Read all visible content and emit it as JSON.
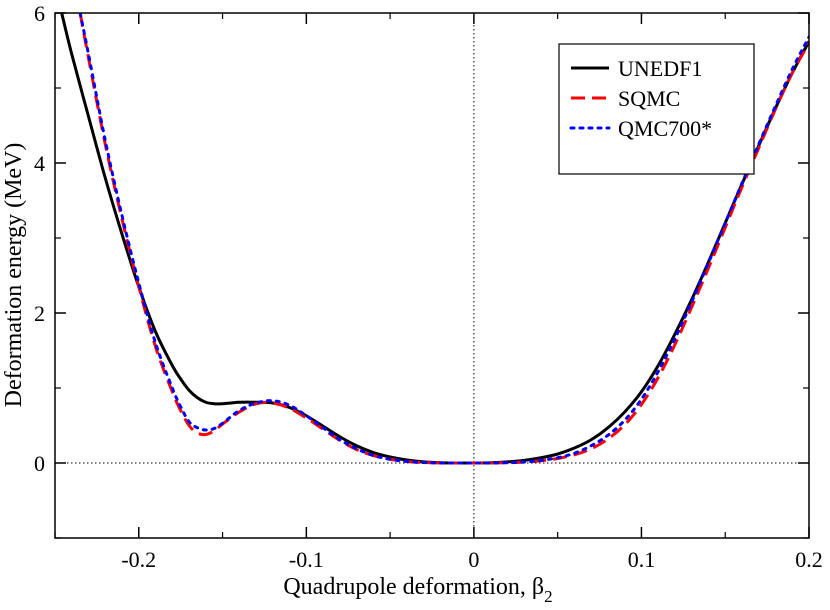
{
  "chart_data": {
    "type": "line",
    "title": "",
    "xlabel": "Quadrupole deformation, β",
    "xlabel_subscript": "2",
    "ylabel": "Deformation energy (MeV)",
    "xlim": [
      -0.25,
      0.2
    ],
    "ylim": [
      -1,
      6
    ],
    "xticks": [
      -0.2,
      -0.1,
      0,
      0.1,
      0.2
    ],
    "xtick_labels": [
      "-0.2",
      "-0.1",
      "0",
      "0.1",
      "0.2"
    ],
    "yticks": [
      0,
      2,
      4,
      6
    ],
    "ytick_labels": [
      "0",
      "2",
      "4",
      "6"
    ],
    "grid": false,
    "reference_lines": {
      "x": 0,
      "y": 0
    },
    "legend_position": "top-right",
    "series": [
      {
        "name": "UNEDF1",
        "color": "#000000",
        "style": "solid",
        "x": [
          -0.246,
          -0.24,
          -0.23,
          -0.22,
          -0.21,
          -0.2,
          -0.19,
          -0.18,
          -0.175,
          -0.17,
          -0.165,
          -0.16,
          -0.155,
          -0.15,
          -0.145,
          -0.14,
          -0.13,
          -0.12,
          -0.11,
          -0.1,
          -0.09,
          -0.08,
          -0.07,
          -0.06,
          -0.05,
          -0.04,
          -0.03,
          -0.02,
          -0.01,
          0.0,
          0.01,
          0.02,
          0.03,
          0.04,
          0.05,
          0.06,
          0.07,
          0.08,
          0.09,
          0.1,
          0.11,
          0.12,
          0.13,
          0.14,
          0.15,
          0.16,
          0.17,
          0.18,
          0.19,
          0.2
        ],
        "y": [
          6.0,
          5.45,
          4.62,
          3.8,
          3.05,
          2.35,
          1.75,
          1.3,
          1.12,
          0.97,
          0.87,
          0.81,
          0.79,
          0.79,
          0.8,
          0.81,
          0.81,
          0.8,
          0.74,
          0.63,
          0.49,
          0.35,
          0.23,
          0.14,
          0.08,
          0.04,
          0.015,
          0.004,
          0.0,
          0.0,
          0.004,
          0.015,
          0.035,
          0.07,
          0.12,
          0.2,
          0.31,
          0.47,
          0.68,
          0.95,
          1.3,
          1.72,
          2.18,
          2.68,
          3.2,
          3.72,
          4.23,
          4.73,
          5.2,
          5.62
        ]
      },
      {
        "name": "SQMC",
        "color": "#ff0000",
        "style": "dashed",
        "x": [
          -0.235,
          -0.23,
          -0.22,
          -0.21,
          -0.2,
          -0.19,
          -0.18,
          -0.175,
          -0.17,
          -0.165,
          -0.16,
          -0.155,
          -0.15,
          -0.14,
          -0.13,
          -0.12,
          -0.11,
          -0.1,
          -0.09,
          -0.08,
          -0.07,
          -0.06,
          -0.05,
          -0.04,
          -0.03,
          -0.02,
          -0.01,
          0.0,
          0.01,
          0.02,
          0.03,
          0.04,
          0.05,
          0.06,
          0.07,
          0.08,
          0.09,
          0.1,
          0.11,
          0.12,
          0.13,
          0.14,
          0.15,
          0.16,
          0.17,
          0.18,
          0.19,
          0.2
        ],
        "y": [
          6.0,
          5.4,
          4.25,
          3.25,
          2.35,
          1.55,
          0.95,
          0.7,
          0.5,
          0.4,
          0.38,
          0.43,
          0.52,
          0.68,
          0.79,
          0.8,
          0.73,
          0.6,
          0.45,
          0.3,
          0.18,
          0.1,
          0.05,
          0.02,
          0.006,
          0.001,
          0.0,
          0.0,
          0.0,
          0.004,
          0.012,
          0.03,
          0.06,
          0.11,
          0.19,
          0.32,
          0.51,
          0.78,
          1.14,
          1.58,
          2.08,
          2.6,
          3.14,
          3.68,
          4.2,
          4.72,
          5.2,
          5.6
        ]
      },
      {
        "name": "QMC700*",
        "color": "#0000ff",
        "style": "dotted",
        "x": [
          -0.235,
          -0.23,
          -0.22,
          -0.21,
          -0.2,
          -0.19,
          -0.18,
          -0.175,
          -0.17,
          -0.165,
          -0.16,
          -0.155,
          -0.15,
          -0.14,
          -0.13,
          -0.12,
          -0.11,
          -0.1,
          -0.09,
          -0.08,
          -0.07,
          -0.06,
          -0.05,
          -0.04,
          -0.03,
          -0.02,
          -0.01,
          0.0,
          0.01,
          0.02,
          0.03,
          0.04,
          0.05,
          0.06,
          0.07,
          0.08,
          0.09,
          0.1,
          0.11,
          0.12,
          0.13,
          0.14,
          0.15,
          0.16,
          0.17,
          0.18,
          0.19,
          0.2
        ],
        "y": [
          6.0,
          5.45,
          4.3,
          3.3,
          2.4,
          1.6,
          1.0,
          0.75,
          0.55,
          0.47,
          0.44,
          0.46,
          0.53,
          0.7,
          0.8,
          0.83,
          0.77,
          0.63,
          0.47,
          0.31,
          0.19,
          0.1,
          0.05,
          0.02,
          0.006,
          0.001,
          0.0,
          0.0,
          0.0,
          0.004,
          0.014,
          0.035,
          0.07,
          0.13,
          0.23,
          0.37,
          0.57,
          0.85,
          1.22,
          1.66,
          2.15,
          2.67,
          3.2,
          3.73,
          4.25,
          4.76,
          5.25,
          5.68
        ]
      }
    ]
  }
}
